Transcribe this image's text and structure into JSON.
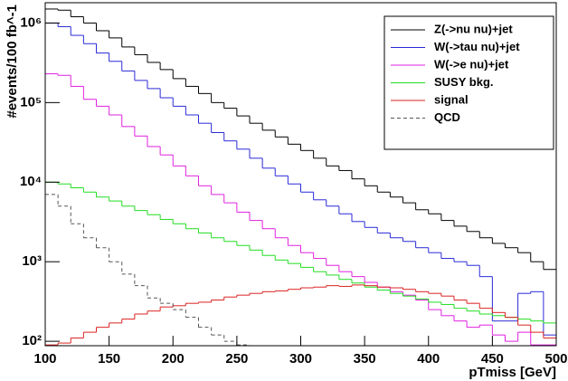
{
  "chart_data": {
    "type": "histogram",
    "xlabel": "pTmiss [GeV]",
    "ylabel": "#events/100 fb^-1",
    "bins": [
      100,
      110,
      120,
      130,
      140,
      150,
      160,
      170,
      180,
      190,
      200,
      210,
      220,
      230,
      240,
      250,
      260,
      270,
      280,
      290,
      300,
      310,
      320,
      330,
      340,
      350,
      360,
      370,
      380,
      390,
      400,
      410,
      420,
      430,
      440,
      450,
      460,
      470,
      480,
      490,
      500
    ],
    "xlim": [
      100,
      500
    ],
    "xticks": [
      100,
      150,
      200,
      250,
      300,
      350,
      400,
      450,
      500
    ],
    "ylim": [
      88,
      1800000
    ],
    "log_y": true,
    "yticks": [
      {
        "value": 100,
        "label": "10²"
      },
      {
        "value": 1000,
        "label": "10³"
      },
      {
        "value": 10000,
        "label": "10⁴"
      },
      {
        "value": 100000,
        "label": "10⁵"
      },
      {
        "value": 1000000,
        "label": "10⁶"
      }
    ],
    "legend": "upper right",
    "series": [
      {
        "name": "Z(->nu nu)+jet",
        "color": "#000000",
        "values": [
          1500000,
          1450000,
          1200000,
          1000000,
          800000,
          650000,
          500000,
          400000,
          320000,
          260000,
          200000,
          160000,
          130000,
          100000,
          85000,
          68000,
          55000,
          45000,
          37000,
          30000,
          25000,
          20000,
          16000,
          14000,
          11000,
          9000,
          7500,
          6500,
          5500,
          4500,
          4000,
          3300,
          2800,
          2400,
          2000,
          1700,
          1500,
          1300,
          1000,
          800
        ]
      },
      {
        "name": "W(->tau nu)+jet",
        "color": "#2a2ad8",
        "values": [
          1000000,
          900000,
          700000,
          550000,
          420000,
          330000,
          250000,
          190000,
          150000,
          115000,
          90000,
          70000,
          55000,
          42000,
          33000,
          26000,
          20000,
          15000,
          12000,
          9500,
          7500,
          6000,
          5000,
          4000,
          3200,
          2700,
          2300,
          2000,
          1800,
          1500,
          1300,
          1100,
          1000,
          900,
          650,
          180,
          180,
          400,
          420,
          120
        ]
      },
      {
        "name": "W(->e nu)+jet",
        "color": "#e020e0",
        "values": [
          230000,
          220000,
          160000,
          110000,
          90000,
          70000,
          50000,
          38000,
          28000,
          22000,
          16000,
          12000,
          9000,
          7000,
          5500,
          4200,
          3300,
          2600,
          2000,
          1600,
          1300,
          1100,
          900,
          750,
          650,
          550,
          480,
          420,
          380,
          330,
          250,
          210,
          180,
          150,
          160,
          120,
          100,
          130,
          90,
          90
        ]
      },
      {
        "name": "SUSY bkg.",
        "color": "#22dd22",
        "values": [
          10000,
          9500,
          8500,
          7500,
          6500,
          5800,
          5000,
          4400,
          3900,
          3400,
          3000,
          2600,
          2300,
          2000,
          1800,
          1600,
          1400,
          1200,
          1050,
          950,
          850,
          750,
          680,
          600,
          540,
          480,
          440,
          400,
          370,
          340,
          310,
          290,
          260,
          240,
          220,
          210,
          200,
          190,
          180,
          170
        ]
      },
      {
        "name": "signal",
        "color": "#dd2222",
        "values": [
          90,
          95,
          110,
          130,
          150,
          170,
          190,
          220,
          240,
          270,
          280,
          300,
          310,
          330,
          360,
          380,
          400,
          420,
          430,
          450,
          470,
          480,
          500,
          490,
          510,
          500,
          480,
          470,
          450,
          420,
          400,
          370,
          330,
          300,
          260,
          230,
          200,
          160,
          130,
          110
        ]
      },
      {
        "name": "QCD",
        "color": "#555555",
        "dashed": true,
        "values": [
          7000,
          5000,
          3000,
          2000,
          1500,
          1000,
          700,
          500,
          350,
          300,
          250,
          200,
          150,
          120,
          100,
          90,
          null,
          null,
          null,
          null,
          null,
          null,
          null,
          null,
          null,
          null,
          null,
          null,
          null,
          null,
          null,
          null,
          null,
          null,
          null,
          null,
          null,
          null,
          null,
          null
        ]
      }
    ]
  }
}
